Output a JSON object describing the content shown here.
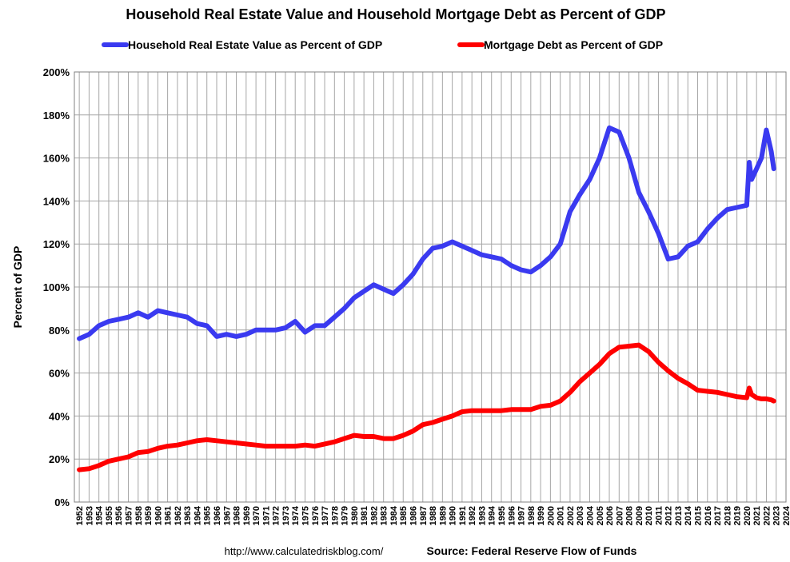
{
  "chart_data": {
    "type": "line",
    "title": "Household Real Estate Value and Household Mortgage Debt as Percent of GDP",
    "y_label": "Percent of GDP",
    "footer_url": "http://www.calculatedriskblog.com/",
    "footer_source": "Source: Federal Reserve Flow of Funds",
    "x": [
      1952,
      1953,
      1954,
      1955,
      1956,
      1957,
      1958,
      1959,
      1960,
      1961,
      1962,
      1963,
      1964,
      1965,
      1966,
      1967,
      1968,
      1969,
      1970,
      1971,
      1972,
      1973,
      1974,
      1975,
      1976,
      1977,
      1978,
      1979,
      1980,
      1981,
      1982,
      1983,
      1984,
      1985,
      1986,
      1987,
      1988,
      1989,
      1990,
      1991,
      1992,
      1993,
      1994,
      1995,
      1996,
      1997,
      1998,
      1999,
      2000,
      2001,
      2002,
      2003,
      2004,
      2005,
      2006,
      2007,
      2008,
      2009,
      2010,
      2011,
      2012,
      2013,
      2014,
      2015,
      2016,
      2017,
      2018,
      2019,
      2020,
      2020.25,
      2020.5,
      2021,
      2021.5,
      2022,
      2022.5,
      2022.75
    ],
    "series": [
      {
        "name": "Household Real Estate Value as Percent of GDP",
        "color": "#3a3af0",
        "values": [
          76,
          78,
          82,
          84,
          85,
          86,
          88,
          86,
          89,
          88,
          87,
          86,
          83,
          82,
          77,
          78,
          77,
          78,
          80,
          80,
          80,
          81,
          84,
          79,
          82,
          82,
          86,
          90,
          95,
          98,
          101,
          99,
          97,
          101,
          106,
          113,
          118,
          119,
          121,
          119,
          117,
          115,
          114,
          113,
          110,
          108,
          107,
          110,
          114,
          120,
          135,
          143,
          150,
          160,
          174,
          172,
          160,
          144,
          135,
          125,
          113,
          114,
          119,
          121,
          127,
          132,
          136,
          137,
          138,
          158,
          150,
          155,
          160,
          173,
          163,
          155
        ]
      },
      {
        "name": "Mortgage Debt as Percent of GDP",
        "color": "#ff0000",
        "values": [
          15,
          15.5,
          17,
          19,
          20,
          21,
          23,
          23.5,
          25,
          26,
          26.5,
          27.5,
          28.5,
          29,
          28.5,
          28,
          27.5,
          27,
          26.5,
          26,
          26,
          26,
          26,
          26.5,
          26,
          27,
          28,
          29.5,
          31,
          30.5,
          30.5,
          29.5,
          29.5,
          31,
          33,
          36,
          37,
          38.5,
          40,
          42,
          42.5,
          42.5,
          42.5,
          42.5,
          43,
          43,
          43,
          44.5,
          45,
          47,
          51,
          56,
          60,
          64,
          69,
          72,
          72.5,
          73,
          70,
          65,
          61,
          57.5,
          55,
          52,
          51.5,
          51,
          50,
          49,
          48.5,
          53,
          50,
          48.5,
          48,
          48,
          47.5,
          47
        ]
      }
    ],
    "xlim": [
      1951.5,
      2024
    ],
    "xticks": [
      1952,
      1953,
      1954,
      1955,
      1956,
      1957,
      1958,
      1959,
      1960,
      1961,
      1962,
      1963,
      1964,
      1965,
      1966,
      1967,
      1968,
      1969,
      1970,
      1971,
      1972,
      1973,
      1974,
      1975,
      1976,
      1977,
      1978,
      1979,
      1980,
      1981,
      1982,
      1983,
      1984,
      1985,
      1986,
      1987,
      1988,
      1989,
      1990,
      1991,
      1992,
      1993,
      1994,
      1995,
      1996,
      1997,
      1998,
      1999,
      2000,
      2001,
      2002,
      2003,
      2004,
      2005,
      2006,
      2007,
      2008,
      2009,
      2010,
      2011,
      2012,
      2013,
      2014,
      2015,
      2016,
      2017,
      2018,
      2019,
      2020,
      2021,
      2022,
      2023,
      2024
    ],
    "ylim": [
      0,
      200
    ],
    "yticks": [
      {
        "value": 0,
        "label": "0%"
      },
      {
        "value": 20,
        "label": "20%"
      },
      {
        "value": 40,
        "label": "40%"
      },
      {
        "value": 60,
        "label": "60%"
      },
      {
        "value": 80,
        "label": "80%"
      },
      {
        "value": 100,
        "label": "100%"
      },
      {
        "value": 120,
        "label": "120%"
      },
      {
        "value": 140,
        "label": "140%"
      },
      {
        "value": 160,
        "label": "160%"
      },
      {
        "value": 180,
        "label": "180%"
      },
      {
        "value": 200,
        "label": "200%"
      }
    ],
    "grid": true
  }
}
